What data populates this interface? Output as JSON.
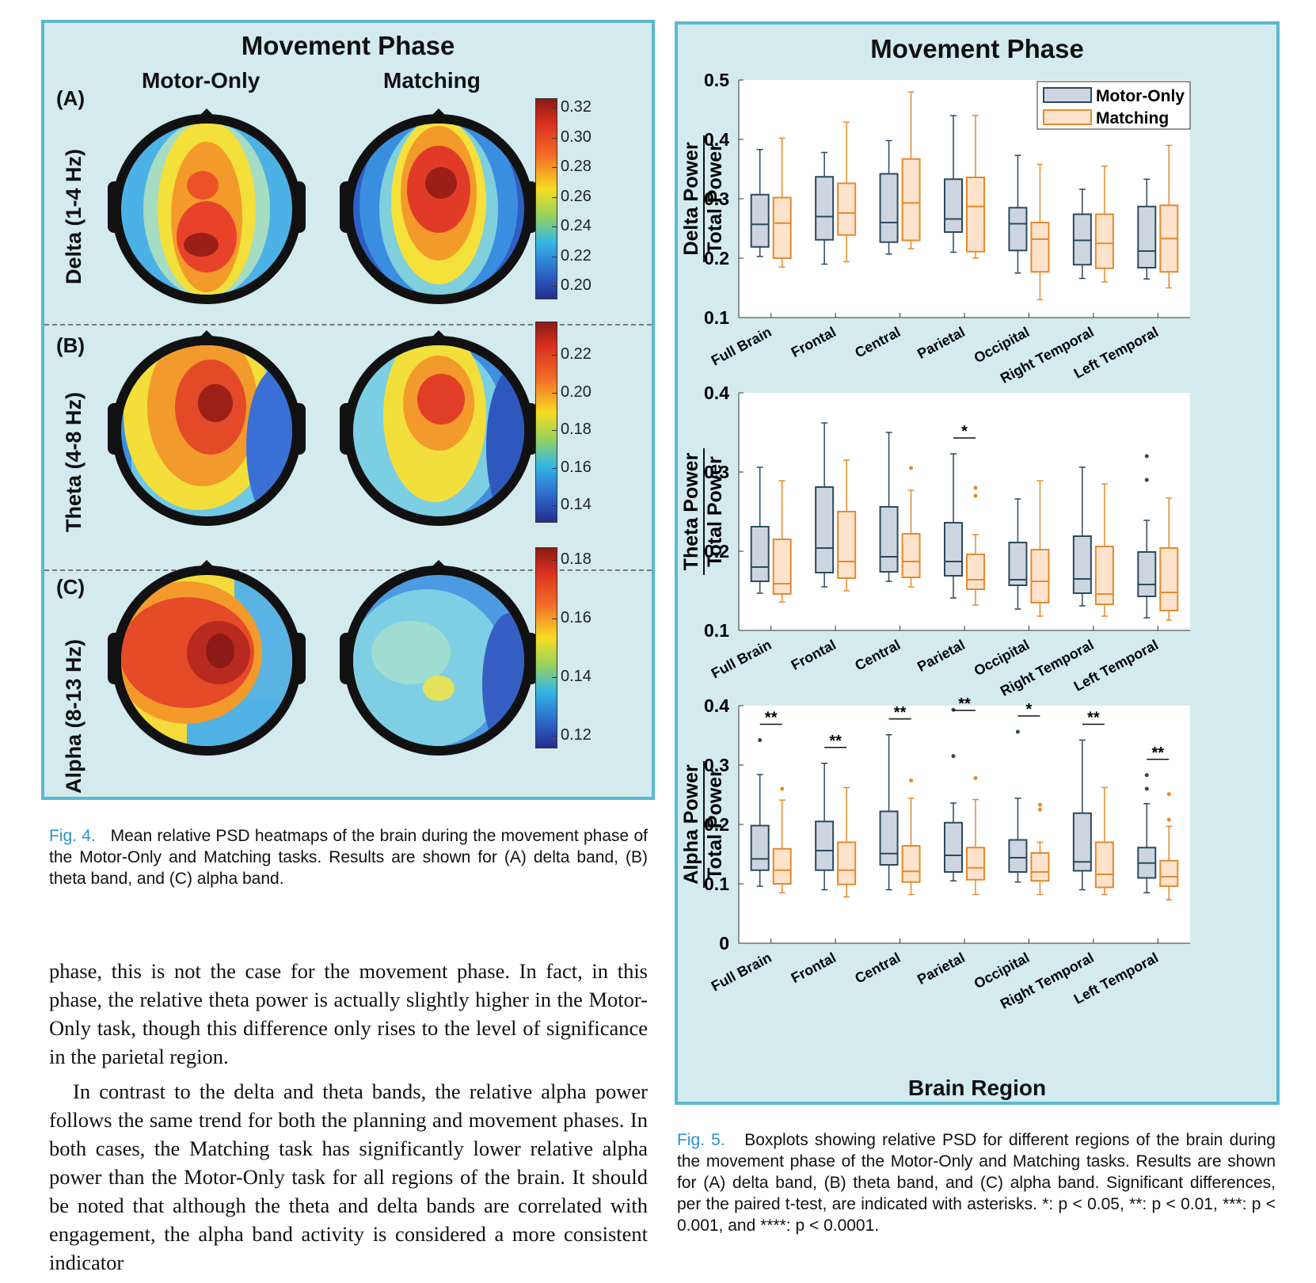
{
  "left_figure": {
    "title": "Movement Phase",
    "columns": [
      "Motor-Only",
      "Matching"
    ],
    "rows": [
      {
        "label": "(A)",
        "band": "Delta (1-4 Hz)",
        "colorbar_ticks": [
          "0.32",
          "0.30",
          "0.28",
          "0.26",
          "0.24",
          "0.22",
          "0.20"
        ]
      },
      {
        "label": "(B)",
        "band": "Theta (4-8 Hz)",
        "colorbar_ticks": [
          "0.22",
          "0.20",
          "0.18",
          "0.16",
          "0.14"
        ]
      },
      {
        "label": "(C)",
        "band": "Alpha (8-13 Hz)",
        "colorbar_ticks": [
          "0.18",
          "0.16",
          "0.14",
          "0.12"
        ]
      }
    ]
  },
  "fig4_caption": {
    "label": "Fig. 4.",
    "text": "Mean relative PSD heatmaps of the brain during the movement phase of the Motor-Only and Matching tasks. Results are shown for (A) delta band, (B) theta band, and (C) alpha band."
  },
  "body_text": [
    "phase, this is not the case for the movement phase. In fact, in this phase, the relative theta power is actually slightly higher in the Motor-Only task, though this difference only rises to the level of significance in the parietal region.",
    "In contrast to the delta and theta bands, the relative alpha power follows the same trend for both the planning and movement phases. In both cases, the Matching task has significantly lower relative alpha power than the Motor-Only task for all regions of the brain. It should be noted that although the theta and delta bands are correlated with engagement, the alpha band activity is considered a more consistent indicator"
  ],
  "right_figure": {
    "title": "Movement Phase",
    "xlabel": "Brain Region"
  },
  "chart_data": [
    {
      "type": "box",
      "ylabel_top": "Delta Power",
      "ylabel_bottom": "Total Power",
      "ylim": [
        0.1,
        0.5
      ],
      "yticks": [
        "0.1",
        "0.2",
        "0.3",
        "0.4",
        "0.5"
      ],
      "categories": [
        "Full Brain",
        "Frontal",
        "Central",
        "Parietal",
        "Occipital",
        "Right Temporal",
        "Left Temporal"
      ],
      "legend": {
        "position": "top-right"
      },
      "series": [
        {
          "name": "Motor-Only",
          "color": "#2c4a5e",
          "fill": "#cdd5e0",
          "boxes": [
            {
              "min": 0.203,
              "q1": 0.219,
              "median": 0.257,
              "q3": 0.307,
              "max": 0.383,
              "outliers": []
            },
            {
              "min": 0.19,
              "q1": 0.231,
              "median": 0.27,
              "q3": 0.337,
              "max": 0.378,
              "outliers": []
            },
            {
              "min": 0.207,
              "q1": 0.227,
              "median": 0.26,
              "q3": 0.342,
              "max": 0.398,
              "outliers": []
            },
            {
              "min": 0.21,
              "q1": 0.244,
              "median": 0.266,
              "q3": 0.333,
              "max": 0.44,
              "outliers": []
            },
            {
              "min": 0.175,
              "q1": 0.213,
              "median": 0.258,
              "q3": 0.285,
              "max": 0.373,
              "outliers": []
            },
            {
              "min": 0.166,
              "q1": 0.189,
              "median": 0.23,
              "q3": 0.274,
              "max": 0.316,
              "outliers": []
            },
            {
              "min": 0.165,
              "q1": 0.184,
              "median": 0.212,
              "q3": 0.287,
              "max": 0.333,
              "outliers": []
            }
          ]
        },
        {
          "name": "Matching",
          "color": "#e58a2e",
          "fill": "#fde3cb",
          "boxes": [
            {
              "min": 0.185,
              "q1": 0.2,
              "median": 0.259,
              "q3": 0.302,
              "max": 0.402,
              "outliers": []
            },
            {
              "min": 0.194,
              "q1": 0.239,
              "median": 0.276,
              "q3": 0.326,
              "max": 0.429,
              "outliers": []
            },
            {
              "min": 0.216,
              "q1": 0.23,
              "median": 0.293,
              "q3": 0.367,
              "max": 0.48,
              "outliers": []
            },
            {
              "min": 0.2,
              "q1": 0.211,
              "median": 0.287,
              "q3": 0.336,
              "max": 0.44,
              "outliers": []
            },
            {
              "min": 0.13,
              "q1": 0.177,
              "median": 0.232,
              "q3": 0.26,
              "max": 0.358,
              "outliers": []
            },
            {
              "min": 0.16,
              "q1": 0.183,
              "median": 0.225,
              "q3": 0.274,
              "max": 0.355,
              "outliers": []
            },
            {
              "min": 0.15,
              "q1": 0.177,
              "median": 0.233,
              "q3": 0.289,
              "max": 0.39,
              "outliers": []
            }
          ]
        }
      ],
      "significance": [
        null,
        null,
        null,
        null,
        null,
        null,
        null
      ]
    },
    {
      "type": "box",
      "ylabel_top": "Theta Power",
      "ylabel_bottom": "Total Power",
      "ylim": [
        0.1,
        0.4
      ],
      "yticks": [
        "0.1",
        "0.2",
        "0.3",
        "0.4"
      ],
      "categories": [
        "Full Brain",
        "Frontal",
        "Central",
        "Parietal",
        "Occipital",
        "Right Temporal",
        "Left Temporal"
      ],
      "series": [
        {
          "name": "Motor-Only",
          "color": "#2c4a5e",
          "fill": "#cdd5e0",
          "boxes": [
            {
              "min": 0.147,
              "q1": 0.162,
              "median": 0.18,
              "q3": 0.231,
              "max": 0.306,
              "outliers": []
            },
            {
              "min": 0.155,
              "q1": 0.173,
              "median": 0.204,
              "q3": 0.281,
              "max": 0.362,
              "outliers": []
            },
            {
              "min": 0.162,
              "q1": 0.174,
              "median": 0.193,
              "q3": 0.256,
              "max": 0.35,
              "outliers": []
            },
            {
              "min": 0.141,
              "q1": 0.169,
              "median": 0.187,
              "q3": 0.236,
              "max": 0.323,
              "outliers": []
            },
            {
              "min": 0.127,
              "q1": 0.157,
              "median": 0.164,
              "q3": 0.211,
              "max": 0.266,
              "outliers": []
            },
            {
              "min": 0.131,
              "q1": 0.147,
              "median": 0.165,
              "q3": 0.219,
              "max": 0.306,
              "outliers": []
            },
            {
              "min": 0.116,
              "q1": 0.143,
              "median": 0.158,
              "q3": 0.199,
              "max": 0.239,
              "outliers": [
                0.29,
                0.32
              ]
            }
          ]
        },
        {
          "name": "Matching",
          "color": "#e58a2e",
          "fill": "#fde3cb",
          "boxes": [
            {
              "min": 0.136,
              "q1": 0.146,
              "median": 0.159,
              "q3": 0.215,
              "max": 0.289,
              "outliers": []
            },
            {
              "min": 0.15,
              "q1": 0.166,
              "median": 0.187,
              "q3": 0.25,
              "max": 0.315,
              "outliers": []
            },
            {
              "min": 0.155,
              "q1": 0.167,
              "median": 0.187,
              "q3": 0.222,
              "max": 0.277,
              "outliers": [
                0.305
              ]
            },
            {
              "min": 0.132,
              "q1": 0.152,
              "median": 0.164,
              "q3": 0.196,
              "max": 0.221,
              "outliers": [
                0.27,
                0.28
              ]
            },
            {
              "min": 0.118,
              "q1": 0.135,
              "median": 0.162,
              "q3": 0.202,
              "max": 0.289,
              "outliers": []
            },
            {
              "min": 0.118,
              "q1": 0.133,
              "median": 0.146,
              "q3": 0.206,
              "max": 0.285,
              "outliers": []
            },
            {
              "min": 0.113,
              "q1": 0.125,
              "median": 0.148,
              "q3": 0.204,
              "max": 0.267,
              "outliers": []
            }
          ]
        }
      ],
      "significance": [
        null,
        null,
        null,
        "*",
        null,
        null,
        null
      ]
    },
    {
      "type": "box",
      "ylabel_top": "Alpha Power",
      "ylabel_bottom": "Total Power",
      "ylim": [
        0,
        0.4
      ],
      "yticks": [
        "0",
        "0.1",
        "0.2",
        "0.3",
        "0.4"
      ],
      "categories": [
        "Full Brain",
        "Frontal",
        "Central",
        "Parietal",
        "Occipital",
        "Right Temporal",
        "Left Temporal"
      ],
      "series": [
        {
          "name": "Motor-Only",
          "color": "#2c4a5e",
          "fill": "#cdd5e0",
          "boxes": [
            {
              "min": 0.096,
              "q1": 0.123,
              "median": 0.142,
              "q3": 0.198,
              "max": 0.284,
              "outliers": [
                0.342
              ]
            },
            {
              "min": 0.09,
              "q1": 0.123,
              "median": 0.156,
              "q3": 0.205,
              "max": 0.303,
              "outliers": []
            },
            {
              "min": 0.09,
              "q1": 0.132,
              "median": 0.151,
              "q3": 0.222,
              "max": 0.351,
              "outliers": []
            },
            {
              "min": 0.105,
              "q1": 0.12,
              "median": 0.148,
              "q3": 0.203,
              "max": 0.236,
              "outliers": [
                0.315,
                0.393
              ]
            },
            {
              "min": 0.103,
              "q1": 0.12,
              "median": 0.144,
              "q3": 0.174,
              "max": 0.244,
              "outliers": [
                0.356
              ]
            },
            {
              "min": 0.09,
              "q1": 0.122,
              "median": 0.137,
              "q3": 0.219,
              "max": 0.342,
              "outliers": []
            },
            {
              "min": 0.085,
              "q1": 0.11,
              "median": 0.135,
              "q3": 0.161,
              "max": 0.235,
              "outliers": [
                0.26,
                0.283
              ]
            }
          ]
        },
        {
          "name": "Matching",
          "color": "#e58a2e",
          "fill": "#fde3cb",
          "boxes": [
            {
              "min": 0.085,
              "q1": 0.1,
              "median": 0.123,
              "q3": 0.159,
              "max": 0.241,
              "outliers": [
                0.26
              ]
            },
            {
              "min": 0.078,
              "q1": 0.099,
              "median": 0.123,
              "q3": 0.17,
              "max": 0.262,
              "outliers": []
            },
            {
              "min": 0.082,
              "q1": 0.103,
              "median": 0.121,
              "q3": 0.164,
              "max": 0.244,
              "outliers": [
                0.274
              ]
            },
            {
              "min": 0.082,
              "q1": 0.107,
              "median": 0.127,
              "q3": 0.161,
              "max": 0.242,
              "outliers": [
                0.278
              ]
            },
            {
              "min": 0.082,
              "q1": 0.105,
              "median": 0.12,
              "q3": 0.152,
              "max": 0.17,
              "outliers": [
                0.225,
                0.233
              ]
            },
            {
              "min": 0.082,
              "q1": 0.094,
              "median": 0.116,
              "q3": 0.17,
              "max": 0.262,
              "outliers": []
            },
            {
              "min": 0.073,
              "q1": 0.096,
              "median": 0.112,
              "q3": 0.139,
              "max": 0.197,
              "outliers": [
                0.208,
                0.251
              ]
            }
          ]
        }
      ],
      "significance": [
        "**",
        "**",
        "**",
        "**",
        "*",
        "**",
        "**"
      ]
    }
  ],
  "fig5_caption": {
    "label": "Fig. 5.",
    "text": "Boxplots showing relative PSD for different regions of the brain during the movement phase of the Motor-Only and Matching tasks. Results are shown for (A) delta band, (B) theta band, and (C) alpha band. Significant differences, per the paired t-test, are indicated with asterisks. *: p < 0.05, **: p < 0.01, ***: p < 0.001, and ****: p < 0.0001."
  },
  "colors": {
    "panel_bg": "#d3ebef",
    "panel_border": "#5cb8cf",
    "motor_only": "#2c4a5e",
    "matching": "#e58a2e",
    "caption_label": "#2a8fd0"
  }
}
